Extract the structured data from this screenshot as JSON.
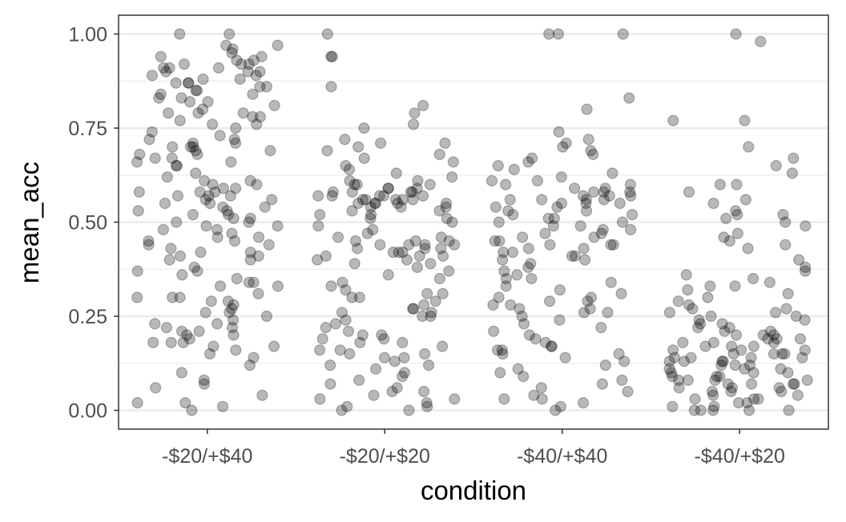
{
  "chart_data": {
    "type": "scatter",
    "jitter": true,
    "xlabel": "condition",
    "ylabel": "mean_acc",
    "categories": [
      "-$20/+$40",
      "-$20/+$20",
      "-$40/+$40",
      "-$40/+$20"
    ],
    "ylim": [
      -0.05,
      1.05
    ],
    "yticks": [
      0.0,
      0.25,
      0.5,
      0.75,
      1.0
    ],
    "ytick_labels": [
      "0.00",
      "0.25",
      "0.50",
      "0.75",
      "1.00"
    ],
    "grid": true,
    "legend": "none",
    "point_color": "#000000",
    "point_opacity": 0.28,
    "panel_background": "#ffffff",
    "grid_color": "#ebebeb",
    "series": [
      {
        "category": "-$20/+$40",
        "values": [
          1.0,
          1.0,
          0.97,
          0.97,
          0.96,
          0.95,
          0.94,
          0.94,
          0.93,
          0.93,
          0.92,
          0.92,
          0.92,
          0.91,
          0.91,
          0.91,
          0.9,
          0.9,
          0.9,
          0.89,
          0.89,
          0.88,
          0.88,
          0.87,
          0.87,
          0.87,
          0.86,
          0.86,
          0.85,
          0.85,
          0.84,
          0.84,
          0.83,
          0.83,
          0.82,
          0.82,
          0.81,
          0.8,
          0.79,
          0.79,
          0.79,
          0.78,
          0.78,
          0.77,
          0.76,
          0.76,
          0.75,
          0.74,
          0.73,
          0.72,
          0.72,
          0.71,
          0.71,
          0.7,
          0.7,
          0.7,
          0.69,
          0.69,
          0.68,
          0.68,
          0.67,
          0.67,
          0.66,
          0.66,
          0.65,
          0.65,
          0.63,
          0.62,
          0.61,
          0.61,
          0.6,
          0.6,
          0.59,
          0.59,
          0.58,
          0.58,
          0.58,
          0.57,
          0.57,
          0.57,
          0.56,
          0.56,
          0.55,
          0.55,
          0.54,
          0.54,
          0.53,
          0.53,
          0.52,
          0.52,
          0.51,
          0.51,
          0.5,
          0.5,
          0.49,
          0.49,
          0.48,
          0.48,
          0.47,
          0.46,
          0.46,
          0.45,
          0.45,
          0.44,
          0.44,
          0.43,
          0.42,
          0.42,
          0.41,
          0.41,
          0.4,
          0.4,
          0.38,
          0.37,
          0.37,
          0.36,
          0.35,
          0.34,
          0.34,
          0.33,
          0.33,
          0.31,
          0.3,
          0.3,
          0.3,
          0.29,
          0.29,
          0.28,
          0.27,
          0.26,
          0.26,
          0.25,
          0.24,
          0.23,
          0.23,
          0.22,
          0.22,
          0.21,
          0.21,
          0.2,
          0.2,
          0.19,
          0.18,
          0.18,
          0.18,
          0.17,
          0.17,
          0.16,
          0.15,
          0.14,
          0.12,
          0.1,
          0.08,
          0.07,
          0.06,
          0.04,
          0.02,
          0.02,
          0.01,
          0.0
        ]
      },
      {
        "category": "-$20/+$20",
        "values": [
          1.0,
          0.94,
          0.94,
          0.86,
          0.81,
          0.79,
          0.76,
          0.75,
          0.72,
          0.71,
          0.71,
          0.7,
          0.69,
          0.68,
          0.67,
          0.66,
          0.65,
          0.64,
          0.63,
          0.62,
          0.61,
          0.61,
          0.6,
          0.6,
          0.6,
          0.59,
          0.59,
          0.59,
          0.58,
          0.58,
          0.58,
          0.58,
          0.57,
          0.57,
          0.57,
          0.57,
          0.57,
          0.56,
          0.56,
          0.56,
          0.56,
          0.56,
          0.55,
          0.55,
          0.55,
          0.55,
          0.55,
          0.54,
          0.54,
          0.54,
          0.53,
          0.53,
          0.52,
          0.52,
          0.51,
          0.51,
          0.5,
          0.49,
          0.48,
          0.47,
          0.46,
          0.46,
          0.45,
          0.45,
          0.45,
          0.44,
          0.44,
          0.44,
          0.44,
          0.43,
          0.43,
          0.43,
          0.42,
          0.42,
          0.42,
          0.41,
          0.41,
          0.41,
          0.4,
          0.4,
          0.39,
          0.39,
          0.38,
          0.37,
          0.36,
          0.35,
          0.34,
          0.33,
          0.32,
          0.31,
          0.31,
          0.3,
          0.3,
          0.29,
          0.28,
          0.27,
          0.27,
          0.26,
          0.26,
          0.25,
          0.25,
          0.24,
          0.23,
          0.22,
          0.21,
          0.2,
          0.2,
          0.19,
          0.19,
          0.18,
          0.18,
          0.17,
          0.16,
          0.16,
          0.15,
          0.15,
          0.14,
          0.14,
          0.13,
          0.12,
          0.12,
          0.11,
          0.1,
          0.09,
          0.08,
          0.07,
          0.06,
          0.05,
          0.05,
          0.04,
          0.03,
          0.03,
          0.02,
          0.01,
          0.01,
          0.0,
          0.0
        ]
      },
      {
        "category": "-$40/+$40",
        "values": [
          1.0,
          1.0,
          1.0,
          0.83,
          0.8,
          0.74,
          0.72,
          0.71,
          0.7,
          0.69,
          0.68,
          0.67,
          0.66,
          0.65,
          0.64,
          0.63,
          0.62,
          0.61,
          0.61,
          0.6,
          0.6,
          0.59,
          0.59,
          0.58,
          0.58,
          0.58,
          0.57,
          0.57,
          0.57,
          0.56,
          0.56,
          0.56,
          0.56,
          0.55,
          0.55,
          0.55,
          0.54,
          0.54,
          0.53,
          0.53,
          0.52,
          0.52,
          0.51,
          0.51,
          0.5,
          0.5,
          0.49,
          0.49,
          0.48,
          0.48,
          0.47,
          0.47,
          0.46,
          0.46,
          0.45,
          0.45,
          0.44,
          0.44,
          0.44,
          0.43,
          0.43,
          0.42,
          0.42,
          0.41,
          0.41,
          0.4,
          0.4,
          0.39,
          0.38,
          0.37,
          0.36,
          0.35,
          0.35,
          0.34,
          0.33,
          0.32,
          0.31,
          0.3,
          0.3,
          0.29,
          0.29,
          0.28,
          0.28,
          0.27,
          0.27,
          0.26,
          0.26,
          0.25,
          0.24,
          0.23,
          0.22,
          0.21,
          0.2,
          0.19,
          0.18,
          0.17,
          0.17,
          0.16,
          0.16,
          0.15,
          0.15,
          0.14,
          0.13,
          0.12,
          0.11,
          0.1,
          0.09,
          0.08,
          0.07,
          0.06,
          0.05,
          0.04,
          0.03,
          0.03,
          0.02,
          0.01,
          0.0
        ]
      },
      {
        "category": "-$40/+$20",
        "values": [
          1.0,
          0.98,
          0.77,
          0.77,
          0.7,
          0.67,
          0.65,
          0.63,
          0.6,
          0.6,
          0.58,
          0.56,
          0.55,
          0.53,
          0.52,
          0.52,
          0.51,
          0.5,
          0.49,
          0.47,
          0.46,
          0.45,
          0.44,
          0.43,
          0.4,
          0.38,
          0.37,
          0.36,
          0.35,
          0.34,
          0.33,
          0.33,
          0.32,
          0.31,
          0.3,
          0.29,
          0.28,
          0.27,
          0.27,
          0.26,
          0.26,
          0.25,
          0.25,
          0.24,
          0.24,
          0.23,
          0.23,
          0.22,
          0.22,
          0.21,
          0.21,
          0.2,
          0.2,
          0.2,
          0.19,
          0.19,
          0.19,
          0.18,
          0.18,
          0.18,
          0.17,
          0.17,
          0.17,
          0.16,
          0.16,
          0.16,
          0.15,
          0.15,
          0.15,
          0.15,
          0.14,
          0.14,
          0.14,
          0.14,
          0.13,
          0.13,
          0.13,
          0.13,
          0.12,
          0.12,
          0.12,
          0.11,
          0.11,
          0.11,
          0.1,
          0.1,
          0.1,
          0.09,
          0.09,
          0.09,
          0.08,
          0.08,
          0.08,
          0.08,
          0.07,
          0.07,
          0.07,
          0.07,
          0.06,
          0.06,
          0.06,
          0.05,
          0.05,
          0.05,
          0.04,
          0.04,
          0.03,
          0.03,
          0.03,
          0.02,
          0.02,
          0.01,
          0.01,
          0.0,
          0.0,
          0.0,
          0.0,
          0.0
        ]
      }
    ]
  }
}
